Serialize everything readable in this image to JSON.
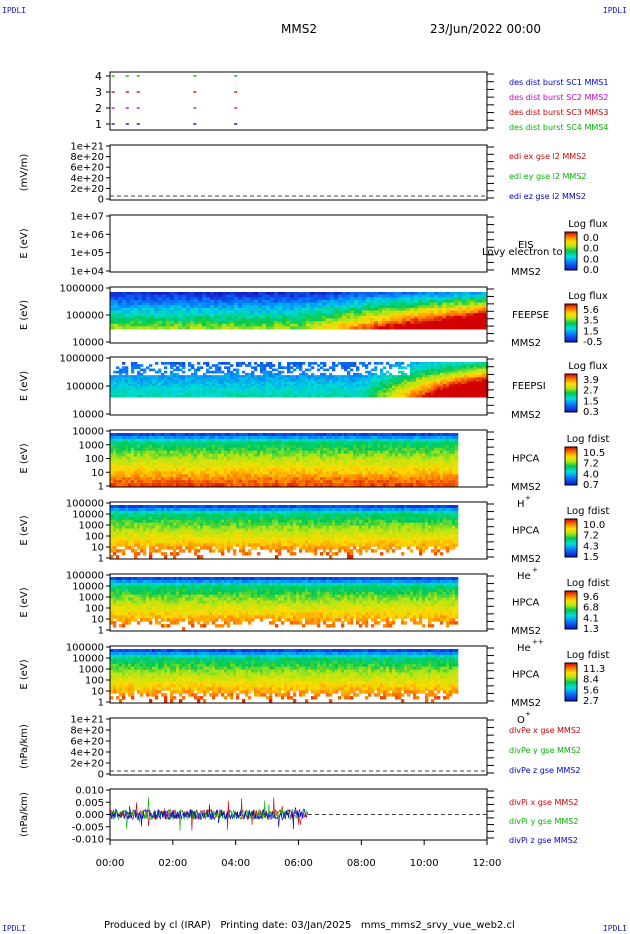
{
  "corner_labels": {
    "top_left": "IPDLI",
    "top_right": "IPDLI",
    "bottom_left": "IPDLI",
    "bottom_right": "IPDLI"
  },
  "header": {
    "spacecraft": "MMS2",
    "date_time": "23/Jun/2022 00:00"
  },
  "footer": {
    "text": "Produced by cl (IRAP)   Printing date: 03/Jan/2025   mms_mms2_srvy_vue_web2.cl"
  },
  "time_axis": {
    "ticks": [
      "00:00",
      "02:00",
      "04:00",
      "06:00",
      "08:00",
      "10:00",
      "12:00"
    ]
  },
  "colors": {
    "red": "#d00000",
    "green": "#00b400",
    "blue": "#0000c8",
    "magenta": "#c800c8"
  },
  "chart_data": [
    {
      "type": "line",
      "panel": "burst availability",
      "y_ticks": [
        "4",
        "3",
        "2",
        "1"
      ],
      "legend": [
        {
          "text": "des dist burst SC1 MMS1",
          "color": "#0000c8"
        },
        {
          "text": "des dist burst SC2 MMS2",
          "color": "#c800c8"
        },
        {
          "text": "des dist burst SC3 MMS3",
          "color": "#d00000"
        },
        {
          "text": "des dist burst SC4 MMS4",
          "color": "#00b400"
        }
      ],
      "intervals_hours": [
        [
          0.05,
          0.15
        ],
        [
          0.5,
          0.6
        ],
        [
          0.85,
          0.95
        ],
        [
          2.65,
          2.75
        ],
        [
          3.95,
          4.05
        ]
      ]
    },
    {
      "type": "line",
      "panel": "EDI E field",
      "ylabel": "(mV/m)",
      "y_ticks": [
        "1e+21",
        "8e+20",
        "6e+20",
        "4e+20",
        "2e+20",
        "0"
      ],
      "legend": [
        {
          "text": "edi ex gse l2 MMS2",
          "color": "#d00000"
        },
        {
          "text": "edi ey gse l2 MMS2",
          "color": "#00b400"
        },
        {
          "text": "edi ez gse l2 MMS2",
          "color": "#0000c8"
        }
      ]
    },
    {
      "type": "heatmap",
      "panel": "EIS",
      "ylabel": "E (eV)",
      "y_ticks": [
        "1e+07",
        "1e+06",
        "1e+05",
        "1e+04"
      ],
      "instrument": "EIS",
      "probe": "MMS2",
      "extra": "Lovy electron to",
      "colorbar": {
        "title": "Log flux",
        "ticks": [
          "0.0",
          "0.0",
          "0.0",
          "0.0"
        ]
      },
      "empty": true
    },
    {
      "type": "heatmap",
      "panel": "FEEPSE",
      "ylabel": "E (eV)",
      "y_ticks": [
        "1000000",
        "100000",
        "10000"
      ],
      "instrument": "FEEPSE",
      "probe": "MMS2",
      "colorbar": {
        "title": "Log flux",
        "ticks": [
          "5.6",
          "3.5",
          "1.5",
          "-0.5"
        ]
      }
    },
    {
      "type": "heatmap",
      "panel": "FEEPSI",
      "ylabel": "E (eV)",
      "y_ticks": [
        "1000000",
        "100000",
        "10000"
      ],
      "instrument": "FEEPSI",
      "probe": "MMS2",
      "colorbar": {
        "title": "Log flux",
        "ticks": [
          "3.9",
          "2.7",
          "1.5",
          "0.3"
        ]
      }
    },
    {
      "type": "heatmap",
      "panel": "HPCA H+",
      "ylabel": "E (eV)",
      "y_ticks": [
        "10000",
        "1000",
        "100",
        "10",
        "1"
      ],
      "instrument": "HPCA",
      "probe": "MMS2",
      "species": "H",
      "charge": "+",
      "colorbar": {
        "title": "Log fdist",
        "ticks": [
          "10.5",
          "7.2",
          "4.0",
          "0.7"
        ]
      }
    },
    {
      "type": "heatmap",
      "panel": "HPCA He+",
      "ylabel": "E (eV)",
      "y_ticks": [
        "100000",
        "10000",
        "1000",
        "100",
        "10",
        "1"
      ],
      "instrument": "HPCA",
      "probe": "MMS2",
      "species": "He",
      "charge": "+",
      "colorbar": {
        "title": "Log fdist",
        "ticks": [
          "10.0",
          "7.2",
          "4.3",
          "1.5"
        ]
      }
    },
    {
      "type": "heatmap",
      "panel": "HPCA He++",
      "ylabel": "E (eV)",
      "y_ticks": [
        "100000",
        "10000",
        "1000",
        "100",
        "10",
        "1"
      ],
      "instrument": "HPCA",
      "probe": "MMS2",
      "species": "He",
      "charge": "++",
      "colorbar": {
        "title": "Log fdist",
        "ticks": [
          "9.6",
          "6.8",
          "4.1",
          "1.3"
        ]
      }
    },
    {
      "type": "heatmap",
      "panel": "HPCA O+",
      "ylabel": "E (eV)",
      "y_ticks": [
        "100000",
        "10000",
        "1000",
        "100",
        "10",
        "1"
      ],
      "instrument": "HPCA",
      "probe": "MMS2",
      "species": "O",
      "charge": "+",
      "colorbar": {
        "title": "Log fdist",
        "ticks": [
          "11.3",
          "8.4",
          "5.6",
          "2.7"
        ]
      }
    },
    {
      "type": "line",
      "panel": "divPe",
      "ylabel": "(nPa/km)",
      "y_ticks": [
        "1e+21",
        "8e+20",
        "6e+20",
        "4e+20",
        "2e+20",
        "0"
      ],
      "legend": [
        {
          "text": "divPe x gse MMS2",
          "color": "#d00000"
        },
        {
          "text": "divPe y gse MMS2",
          "color": "#00b400"
        },
        {
          "text": "divPe z gse MMS2",
          "color": "#0000c8"
        }
      ]
    },
    {
      "type": "line",
      "panel": "divPi",
      "ylabel": "(nPa/km)",
      "y_ticks": [
        "0.010",
        "0.005",
        "0.000",
        "-0.005",
        "-0.010"
      ],
      "ylim": [
        -0.0125,
        0.0125
      ],
      "data_end_hour": 6.3,
      "legend": [
        {
          "text": "divPi x gse MMS2",
          "color": "#d00000"
        },
        {
          "text": "divPi y gse MMS2",
          "color": "#00b400"
        },
        {
          "text": "divPi z gse MMS2",
          "color": "#0000c8"
        }
      ]
    }
  ]
}
